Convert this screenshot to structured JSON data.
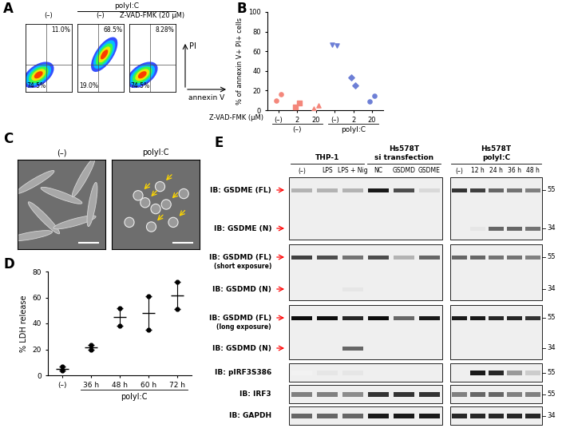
{
  "panel_labels": [
    "A",
    "B",
    "C",
    "D",
    "E"
  ],
  "flow_cytometry": {
    "group": {
      "label": "polyI:C",
      "plots": [
        1,
        2
      ]
    },
    "columns": [
      "(–)",
      "(–)",
      "Z-VAD-FMK (20 μM)"
    ],
    "x_label": "annexin V",
    "y_label": "PI",
    "plots": [
      {
        "upper_right": "11.0%",
        "lower_left": "74.5%"
      },
      {
        "upper_right": "68.5%",
        "lower_left": "19.0%"
      },
      {
        "upper_right": "8.28%",
        "lower_left": "74.5%"
      }
    ]
  },
  "chart_data": [
    {
      "type": "scatter",
      "y_label": "% of annexin V+ PI+ cells",
      "x_label": "Z-VAD-FMK (μM)",
      "categories": [
        "(–)",
        "2",
        "20",
        "(–)",
        "2",
        "20"
      ],
      "groups": [
        {
          "label": "(–)",
          "members": [
            0,
            1,
            2
          ]
        },
        {
          "label": "polyI:C",
          "members": [
            3,
            4,
            5
          ]
        }
      ],
      "series": [
        {
          "color": "#f4877b",
          "marker": "circle",
          "values": [
            [
              10,
              16
            ],
            null,
            null,
            null,
            null,
            null
          ]
        },
        {
          "color": "#f4877b",
          "marker": "square",
          "values": [
            null,
            [
              3,
              7
            ],
            null,
            null,
            null,
            null
          ]
        },
        {
          "color": "#f4877b",
          "marker": "triangle_up",
          "values": [
            null,
            null,
            [
              2,
              5
            ],
            null,
            null,
            null
          ]
        },
        {
          "color": "#6d7fd6",
          "marker": "triangle_down",
          "values": [
            null,
            null,
            null,
            [
              67,
              66
            ],
            null,
            null
          ]
        },
        {
          "color": "#6d7fd6",
          "marker": "diamond",
          "values": [
            null,
            null,
            null,
            null,
            [
              33,
              25
            ],
            null
          ]
        },
        {
          "color": "#6d7fd6",
          "marker": "circle",
          "values": [
            null,
            null,
            null,
            null,
            null,
            [
              9,
              15
            ]
          ]
        }
      ],
      "ylim": [
        0,
        100
      ],
      "yticks": [
        0,
        20,
        40,
        60,
        80,
        100
      ]
    },
    {
      "type": "scatter",
      "y_label": "% LDH release",
      "categories": [
        "(–)",
        "36 h",
        "48 h",
        "60 h",
        "72 h"
      ],
      "groups": [
        {
          "label": "polyI:C",
          "members": [
            1,
            2,
            3,
            4
          ]
        }
      ],
      "values": [
        5,
        21.5,
        45,
        48,
        61.5
      ],
      "error": [
        1.5,
        2,
        7,
        13,
        10.5
      ],
      "color": "#000000",
      "ylim": [
        0,
        80
      ],
      "yticks": [
        0,
        20,
        40,
        60,
        80
      ]
    }
  ],
  "micrographs": {
    "columns": [
      "(–)",
      "polyI:C"
    ]
  },
  "western_blot": {
    "lane_groups": [
      {
        "title": [
          "THP-1"
        ],
        "lanes": [
          "(–)",
          "LPS",
          "LPS + Nig"
        ]
      },
      {
        "title": [
          "Hs578T",
          "si transfection"
        ],
        "lanes": [
          "NC",
          "GSDMD",
          "GSDME"
        ]
      },
      {
        "title": [
          "Hs578T",
          "polyI:C"
        ],
        "lanes": [
          "(–)",
          "12 h",
          "24 h",
          "36 h",
          "48 h"
        ]
      }
    ],
    "blots": [
      {
        "rows": [
          {
            "label": "IB: GSDME (FL)",
            "mw": 55,
            "band_intensity": [
              0.3,
              0.3,
              0.3,
              0.9,
              0.7,
              0.15,
              0.8,
              0.75,
              0.6,
              0.55,
              0.5
            ]
          },
          {
            "label": "IB: GSDME (N)",
            "mw": 34,
            "band_intensity": [
              0,
              0,
              0,
              0,
              0,
              0,
              0,
              0.1,
              0.6,
              0.6,
              0.55
            ]
          }
        ]
      },
      {
        "rows": [
          {
            "label": "IB: GSDMD (FL)",
            "note": "(short exposure)",
            "mw": 55,
            "band_intensity": [
              0.75,
              0.7,
              0.55,
              0.7,
              0.3,
              0.6,
              0.6,
              0.6,
              0.55,
              0.55,
              0.5
            ]
          },
          {
            "label": "IB: GSDMD (N)",
            "mw": 34,
            "band_intensity": [
              0,
              0,
              0.1,
              0,
              0,
              0,
              0,
              0,
              0,
              0,
              0
            ]
          }
        ]
      },
      {
        "rows": [
          {
            "label": "IB: GSDMD (FL)",
            "note": "(long exposure)",
            "mw": 55,
            "band_intensity": [
              0.95,
              0.95,
              0.85,
              0.95,
              0.6,
              0.9,
              0.9,
              0.9,
              0.85,
              0.85,
              0.8
            ]
          },
          {
            "label": "IB: GSDMD (N)",
            "mw": 34,
            "band_intensity": [
              0,
              0,
              0.6,
              0,
              0,
              0,
              0,
              0,
              0,
              0,
              0
            ]
          }
        ]
      },
      {
        "rows": [
          {
            "label": "IB: pIRF3S386",
            "mw": 55,
            "band_intensity": [
              0.05,
              0.1,
              0.1,
              0,
              0,
              0,
              0,
              0.9,
              0.85,
              0.4,
              0.2
            ]
          }
        ]
      },
      {
        "rows": [
          {
            "label": "IB: IRF3",
            "mw": 55,
            "band_intensity": [
              0.5,
              0.5,
              0.45,
              0.8,
              0.8,
              0.8,
              0.5,
              0.6,
              0.6,
              0.5,
              0.5
            ]
          }
        ]
      },
      {
        "rows": [
          {
            "label": "IB: GAPDH",
            "mw": 34,
            "band_intensity": [
              0.6,
              0.6,
              0.6,
              0.9,
              0.9,
              0.9,
              0.85,
              0.85,
              0.85,
              0.85,
              0.85
            ]
          }
        ]
      }
    ]
  }
}
